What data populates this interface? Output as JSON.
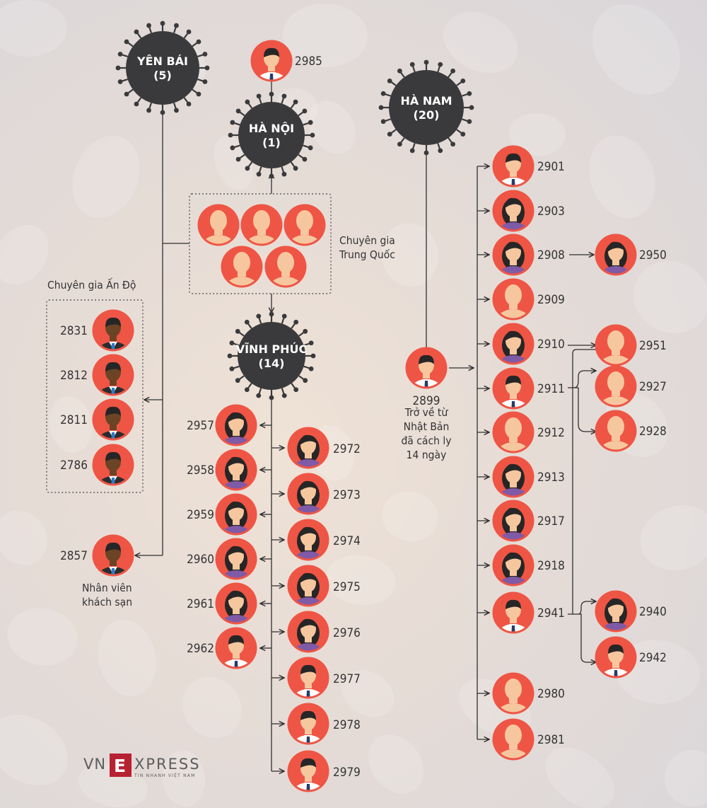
{
  "colors": {
    "virus": "#3a3a3c",
    "avatar_ring": "#ef5545",
    "skin": "#f6c79e",
    "skin_dark": "#6b4426",
    "hair": "#262626",
    "line": "#2f2f2f"
  },
  "clusters": {
    "yen_bai": {
      "name": "YÊN BÁI",
      "count": "(5)"
    },
    "ha_noi": {
      "name": "HÀ NỘI",
      "count": "(1)"
    },
    "vinh_phuc": {
      "name": "VĨNH PHÚC",
      "count": "(14)"
    },
    "ha_nam": {
      "name": "HÀ NAM",
      "count": "(20)"
    }
  },
  "groups": {
    "chinese_experts": "Chuyên gia\nTrung Quốc",
    "indian_experts": "Chuyên gia Ấn Độ",
    "hotel_staff": "Nhân viên\nkhách sạn",
    "returnee_note": "Trở về từ\nNhật Bản\nđã cách ly\n14 ngày"
  },
  "patients": {
    "ha_noi_source": "2985",
    "indian": [
      "2831",
      "2812",
      "2811",
      "2786"
    ],
    "hotel_staff": "2857",
    "vinh_phuc_left": [
      "2957",
      "2958",
      "2959",
      "2960",
      "2961",
      "2962"
    ],
    "vinh_phuc_right": [
      "2972",
      "2973",
      "2974",
      "2975",
      "2976",
      "2977",
      "2978",
      "2979"
    ],
    "ha_nam_source": "2899",
    "ha_nam_contacts": [
      "2901",
      "2903",
      "2908",
      "2909",
      "2910",
      "2911",
      "2912",
      "2913",
      "2917",
      "2918",
      "2941",
      "2980",
      "2981"
    ],
    "secondary": {
      "2908": [
        "2950"
      ],
      "2910": [
        "2951"
      ],
      "2911": [
        "2927",
        "2928"
      ],
      "2941": [
        "2940",
        "2942"
      ]
    }
  },
  "logo": {
    "brand": "VNEXPRESS",
    "tagline": "TIN NHANH VIỆT NAM"
  }
}
